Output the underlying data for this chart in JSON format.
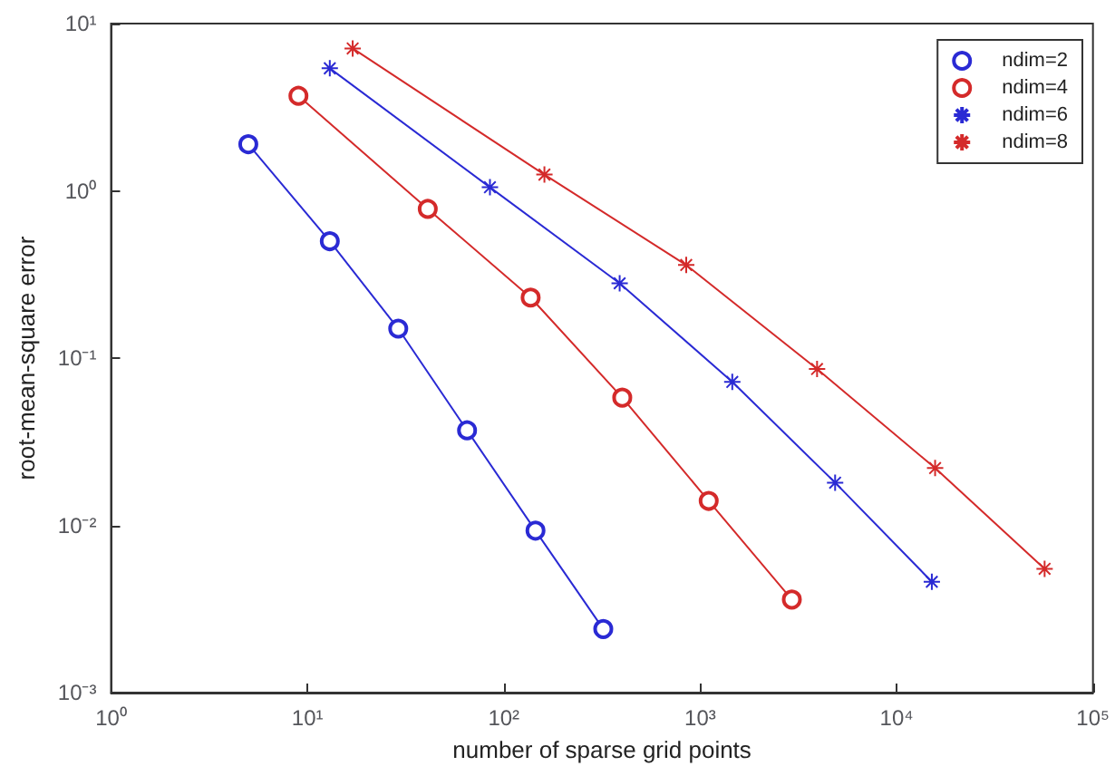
{
  "chart_data": {
    "type": "line",
    "xlabel": "number of sparse grid points",
    "ylabel": "root-mean-square error",
    "log": "xy",
    "legend": "top right",
    "grid": false,
    "xlim": [
      1,
      100000
    ],
    "xticks": [
      {
        "value": 1,
        "label": "10⁰"
      },
      {
        "value": 10,
        "label": "10¹"
      },
      {
        "value": 100,
        "label": "10²"
      },
      {
        "value": 1000,
        "label": "10³"
      },
      {
        "value": 10000,
        "label": "10⁴"
      },
      {
        "value": 100000,
        "label": "10⁵"
      }
    ],
    "ylim": [
      0.001,
      10
    ],
    "yticks": [
      {
        "value": 0.001,
        "label": "10⁻³"
      },
      {
        "value": 0.01,
        "label": "10⁻²"
      },
      {
        "value": 0.1,
        "label": "10⁻¹"
      },
      {
        "value": 1,
        "label": "10⁰"
      },
      {
        "value": 10,
        "label": "10¹"
      }
    ],
    "series": [
      {
        "name": "ndim=2",
        "color": "#2a2ad4",
        "marker": "circle",
        "x": [
          5,
          13,
          29,
          65,
          145,
          321
        ],
        "values": [
          1.9,
          0.5,
          0.15,
          0.037,
          0.0093,
          0.0024
        ]
      },
      {
        "name": "ndim=4",
        "color": "#d42a2a",
        "marker": "circle",
        "x": [
          9,
          41,
          137,
          401,
          1105,
          2929
        ],
        "values": [
          3.7,
          0.78,
          0.23,
          0.058,
          0.014,
          0.0036
        ]
      },
      {
        "name": "ndim=6",
        "color": "#2a2ad4",
        "marker": "cross",
        "x": [
          13,
          85,
          389,
          1457,
          4865,
          15121
        ],
        "values": [
          5.4,
          1.05,
          0.28,
          0.072,
          0.018,
          0.0046
        ]
      },
      {
        "name": "ndim=8",
        "color": "#d42a2a",
        "marker": "cross",
        "x": [
          17,
          161,
          849,
          3937,
          15713,
          56737
        ],
        "values": [
          7.1,
          1.25,
          0.36,
          0.086,
          0.022,
          0.0055
        ]
      }
    ]
  }
}
